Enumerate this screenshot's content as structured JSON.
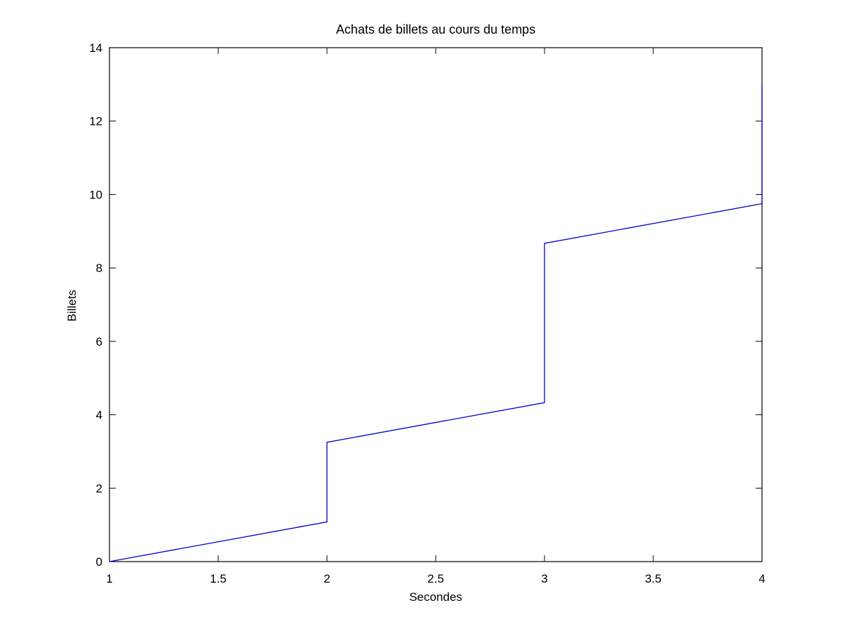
{
  "chart_data": {
    "type": "line",
    "title": "Achats de billets au cours du temps",
    "xlabel": "Secondes",
    "ylabel": "Billets",
    "xlim": [
      1,
      4
    ],
    "ylim": [
      0,
      14
    ],
    "x_ticks": [
      1,
      1.5,
      2,
      2.5,
      3,
      3.5,
      4
    ],
    "x_tick_labels": [
      "1",
      "1.5",
      "2",
      "2.5",
      "3",
      "3.5",
      "4"
    ],
    "y_ticks": [
      0,
      2,
      4,
      6,
      8,
      10,
      12,
      14
    ],
    "y_tick_labels": [
      "0",
      "2",
      "4",
      "6",
      "8",
      "10",
      "12",
      "14"
    ],
    "grid": false,
    "series": [
      {
        "color": "#0000cc",
        "x": [
          1,
          2,
          2,
          3,
          3,
          4,
          4
        ],
        "y": [
          0,
          1.08,
          3.25,
          4.33,
          8.67,
          9.75,
          13.0
        ]
      }
    ]
  }
}
